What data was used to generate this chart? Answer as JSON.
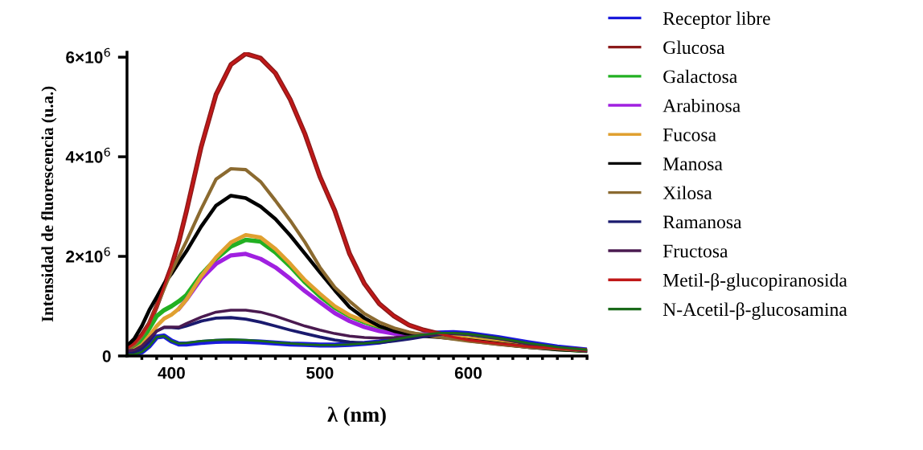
{
  "chart_data": {
    "type": "line",
    "xlabel": "λ (nm)",
    "ylabel": "Intensidad de fluorescencia (u.a.)",
    "x": [
      370,
      375,
      380,
      385,
      390,
      395,
      400,
      405,
      410,
      420,
      430,
      440,
      450,
      460,
      470,
      480,
      490,
      500,
      510,
      520,
      530,
      540,
      550,
      560,
      570,
      580,
      590,
      600,
      620,
      640,
      660,
      680
    ],
    "xlim": [
      370,
      680
    ],
    "ylim": [
      0,
      6100000.0
    ],
    "xticks": [
      {
        "value": 380,
        "label": null
      },
      {
        "value": 390,
        "label": null
      },
      400,
      {
        "value": 410,
        "label": null
      },
      {
        "value": 420,
        "label": null
      },
      {
        "value": 430,
        "label": null
      },
      {
        "value": 440,
        "label": null
      },
      {
        "value": 450,
        "label": null
      },
      {
        "value": 460,
        "label": null
      },
      {
        "value": 470,
        "label": null
      },
      {
        "value": 480,
        "label": null
      },
      {
        "value": 490,
        "label": null
      },
      500,
      {
        "value": 510,
        "label": null
      },
      {
        "value": 520,
        "label": null
      },
      {
        "value": 530,
        "label": null
      },
      {
        "value": 540,
        "label": null
      },
      {
        "value": 550,
        "label": null
      },
      {
        "value": 560,
        "label": null
      },
      {
        "value": 570,
        "label": null
      },
      {
        "value": 580,
        "label": null
      },
      {
        "value": 590,
        "label": null
      },
      600,
      {
        "value": 610,
        "label": null
      },
      {
        "value": 620,
        "label": null
      },
      {
        "value": 630,
        "label": null
      },
      {
        "value": 640,
        "label": null
      },
      {
        "value": 650,
        "label": null
      },
      {
        "value": 660,
        "label": null
      },
      {
        "value": 670,
        "label": null
      },
      {
        "value": 680,
        "label": null
      }
    ],
    "yticks": [
      0,
      {
        "value": 2000000.0,
        "label": "2×10$^{6}$"
      },
      {
        "value": 4000000.0,
        "label": "4×10$^{6}$"
      },
      {
        "value": 6000000.0,
        "label": "6×10$^{6}$"
      }
    ],
    "grid": false,
    "legend": "right",
    "marker": "none",
    "line_style": "solid",
    "series": [
      {
        "name": "Receptor libre",
        "color": "#1a1adc",
        "values": [
          20000.0,
          30000.0,
          80000.0,
          200000.0,
          380000.0,
          400000.0,
          300000.0,
          240000.0,
          240000.0,
          270000.0,
          290000.0,
          300000.0,
          290000.0,
          280000.0,
          260000.0,
          240000.0,
          230000.0,
          220000.0,
          220000.0,
          230000.0,
          250000.0,
          280000.0,
          330000.0,
          380000.0,
          430000.0,
          460000.0,
          470000.0,
          450000.0,
          370000.0,
          270000.0,
          180000.0,
          120000.0
        ]
      },
      {
        "name": "Glucosa",
        "color": "#8b1a1a",
        "values": [
          150000.0,
          250000.0,
          420000.0,
          650000.0,
          1000000.0,
          1400000.0,
          1800000.0,
          2300000.0,
          2900000.0,
          4200000.0,
          5250000.0,
          5850000.0,
          6070000.0,
          5980000.0,
          5680000.0,
          5150000.0,
          4450000.0,
          3600000.0,
          2920000.0,
          2050000.0,
          1450000.0,
          1050000.0,
          800000.0,
          620000.0,
          520000.0,
          450000.0,
          380000.0,
          320000.0,
          250000.0,
          190000.0,
          150000.0,
          110000.0
        ]
      },
      {
        "name": "Galactosa",
        "color": "#22b022",
        "values": [
          100000.0,
          150000.0,
          300000.0,
          550000.0,
          800000.0,
          920000.0,
          1000000.0,
          1100000.0,
          1220000.0,
          1630000.0,
          1950000.0,
          2200000.0,
          2330000.0,
          2300000.0,
          2080000.0,
          1800000.0,
          1480000.0,
          1200000.0,
          970000.0,
          800000.0,
          680000.0,
          580000.0,
          500000.0,
          450000.0,
          420000.0,
          400000.0,
          380000.0,
          350000.0,
          280000.0,
          200000.0,
          140000.0,
          100000.0
        ]
      },
      {
        "name": "Arabinosa",
        "color": "#a020e0",
        "values": [
          null,
          null,
          null,
          null,
          null,
          null,
          null,
          950000.0,
          1130000.0,
          1550000.0,
          1850000.0,
          2020000.0,
          2050000.0,
          1950000.0,
          1780000.0,
          1550000.0,
          1300000.0,
          1080000.0,
          860000.0,
          700000.0,
          580000.0,
          500000.0,
          450000.0,
          430000.0,
          430000.0,
          440000.0,
          null,
          null,
          null,
          null,
          null,
          null
        ]
      },
      {
        "name": "Fucosa",
        "color": "#e0a030",
        "values": [
          80000.0,
          120000.0,
          220000.0,
          400000.0,
          600000.0,
          750000.0,
          830000.0,
          950000.0,
          1130000.0,
          1600000.0,
          1980000.0,
          2280000.0,
          2430000.0,
          2380000.0,
          2150000.0,
          1850000.0,
          1520000.0,
          1250000.0,
          1000000.0,
          820000.0,
          700000.0,
          600000.0,
          520000.0,
          460000.0,
          420000.0,
          400000.0,
          380000.0,
          350000.0,
          280000.0,
          200000.0,
          null,
          null
        ]
      },
      {
        "name": "Manosa",
        "color": "#000000",
        "values": [
          200000.0,
          350000.0,
          600000.0,
          920000.0,
          1180000.0,
          1450000.0,
          1650000.0,
          1880000.0,
          2100000.0,
          2600000.0,
          3020000.0,
          3220000.0,
          3170000.0,
          3000000.0,
          2750000.0,
          2420000.0,
          2050000.0,
          1680000.0,
          1320000.0,
          980000.0,
          760000.0,
          600000.0,
          500000.0,
          440000.0,
          400000.0,
          380000.0,
          350000.0,
          320000.0,
          250000.0,
          180000.0,
          130000.0,
          100000.0
        ]
      },
      {
        "name": "Xilosa",
        "color": "#8b6a30",
        "values": [
          120000.0,
          220000.0,
          400000.0,
          650000.0,
          1000000.0,
          1350000.0,
          1700000.0,
          2000000.0,
          2300000.0,
          2950000.0,
          3550000.0,
          3760000.0,
          3740000.0,
          3500000.0,
          3120000.0,
          2720000.0,
          2280000.0,
          1780000.0,
          1380000.0,
          1100000.0,
          850000.0,
          680000.0,
          560000.0,
          480000.0,
          420000.0,
          380000.0,
          340000.0,
          300000.0,
          240000.0,
          180000.0,
          140000.0,
          100000.0
        ]
      },
      {
        "name": "Ramanosa",
        "color": "#1a1a6e",
        "values": [
          50000.0,
          70000.0,
          150000.0,
          300000.0,
          500000.0,
          570000.0,
          570000.0,
          560000.0,
          600000.0,
          700000.0,
          760000.0,
          770000.0,
          740000.0,
          680000.0,
          600000.0,
          520000.0,
          450000.0,
          380000.0,
          320000.0,
          280000.0,
          260000.0,
          270000.0,
          300000.0,
          340000.0,
          390000.0,
          430000.0,
          450000.0,
          440000.0,
          360000.0,
          250000.0,
          170000.0,
          100000.0
        ]
      },
      {
        "name": "Fructosa",
        "color": "#4a1a50",
        "values": [
          100000.0,
          120000.0,
          200000.0,
          350000.0,
          500000.0,
          580000.0,
          580000.0,
          580000.0,
          650000.0,
          780000.0,
          880000.0,
          920000.0,
          920000.0,
          880000.0,
          800000.0,
          700000.0,
          600000.0,
          520000.0,
          450000.0,
          400000.0,
          370000.0,
          360000.0,
          370000.0,
          390000.0,
          420000.0,
          440000.0,
          450000.0,
          430000.0,
          350000.0,
          240000.0,
          160000.0,
          100000.0
        ]
      },
      {
        "name": "Metil-β-glucopiranosida",
        "color": "#c01818",
        "values": [
          150000.0,
          250000.0,
          420000.0,
          650000.0,
          1000000.0,
          1400000.0,
          1800000.0,
          2300000.0,
          2900000.0,
          4200000.0,
          5250000.0,
          5850000.0,
          6070000.0,
          5980000.0,
          5680000.0,
          5150000.0,
          4450000.0,
          3600000.0,
          2920000.0,
          2050000.0,
          1450000.0,
          1050000.0,
          800000.0,
          620000.0,
          520000.0,
          450000.0,
          380000.0,
          320000.0,
          250000.0,
          190000.0,
          150000.0,
          110000.0
        ]
      },
      {
        "name": "N-Acetil-β-glucosamina",
        "color": "#1a6a1a",
        "values": [
          20000.0,
          30000.0,
          80000.0,
          200000.0,
          380000.0,
          400000.0,
          300000.0,
          250000.0,
          260000.0,
          300000.0,
          320000.0,
          330000.0,
          320000.0,
          300000.0,
          270000.0,
          250000.0,
          230000.0,
          220000.0,
          220000.0,
          230000.0,
          250000.0,
          280000.0,
          330000.0,
          380000.0,
          430000.0,
          460000.0,
          460000.0,
          440000.0,
          360000.0,
          260000.0,
          180000.0,
          120000.0
        ]
      }
    ]
  }
}
